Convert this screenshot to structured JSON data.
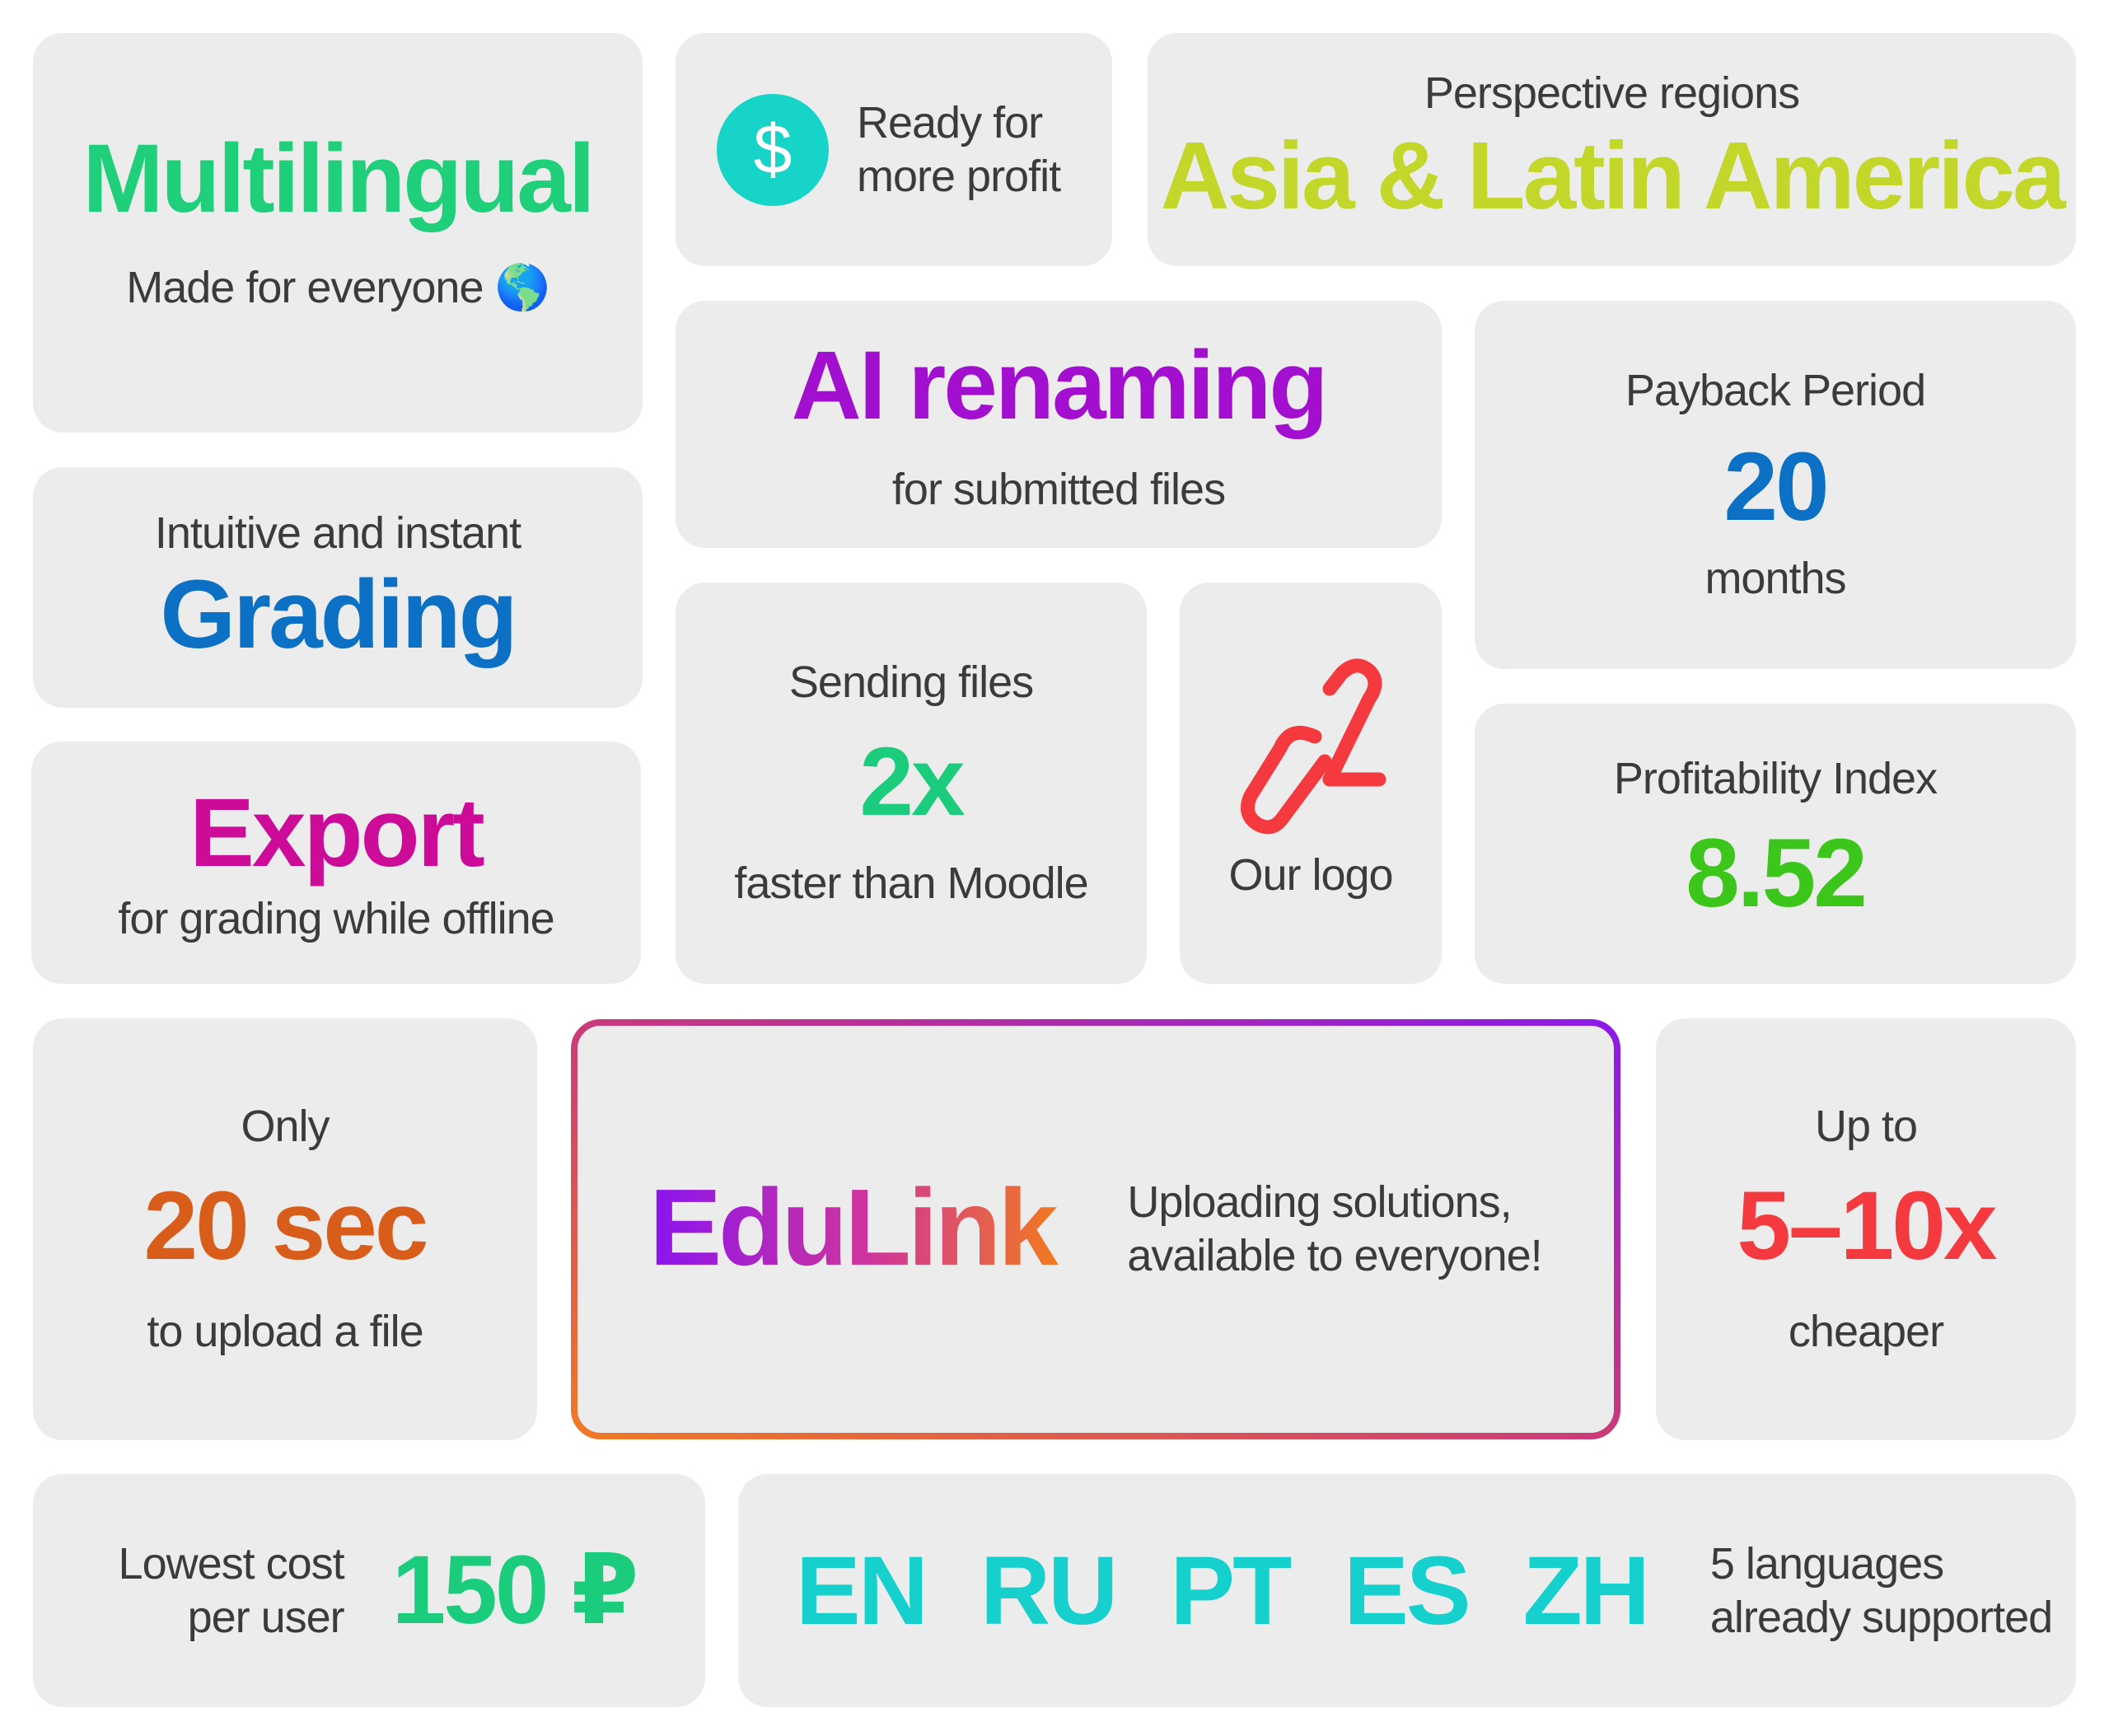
{
  "colors": {
    "card_bg": "#ececec",
    "text_dark": "#3b3b3b",
    "green": "#1fcf79",
    "lime": "#c3d62a",
    "purple": "#a20fce",
    "blue": "#0c70c4",
    "magenta": "#cc0c99",
    "teal_green": "#1bcc7c",
    "bright_green": "#3cc61c",
    "orange": "#d85d1a",
    "red": "#f4393f",
    "cyan": "#15d0cc",
    "gradient_start": "#f07a25",
    "gradient_end": "#8b1ae6"
  },
  "multilingual": {
    "title": "Multilingual",
    "subtitle": "Made for everyone 🌎"
  },
  "ready": {
    "icon": "dollar-icon",
    "symbol": "$",
    "line1": "Ready for",
    "line2": "more profit"
  },
  "regions": {
    "label": "Perspective regions",
    "value": "Asia & Latin America"
  },
  "ai": {
    "title": "AI renaming",
    "subtitle": "for submitted files"
  },
  "payback": {
    "label": "Payback Period",
    "value": "20",
    "unit": "months"
  },
  "grading": {
    "label": "Intuitive and instant",
    "title": "Grading"
  },
  "sending": {
    "label": "Sending files",
    "value": "2x",
    "subtitle": "faster than Moodle"
  },
  "logo": {
    "icon": "link-logo-icon",
    "label": "Our logo"
  },
  "profitability": {
    "label": "Profitability Index",
    "value": "8.52"
  },
  "export": {
    "title": "Export",
    "subtitle": "for grading while offline"
  },
  "only": {
    "label": "Only",
    "value": "20 sec",
    "subtitle": "to upload a file"
  },
  "edulink": {
    "brand": "EduLink",
    "line1": "Uploading solutions,",
    "line2": "available to everyone!"
  },
  "upto": {
    "label": "Up to",
    "value": "5–10x",
    "subtitle": "cheaper"
  },
  "lowest": {
    "line1": "Lowest cost",
    "line2": "per user",
    "value": "150 ₽"
  },
  "languages": {
    "codes": [
      "EN",
      "RU",
      "PT",
      "ES",
      "ZH"
    ],
    "line1": "5 languages",
    "line2": "already supported"
  }
}
